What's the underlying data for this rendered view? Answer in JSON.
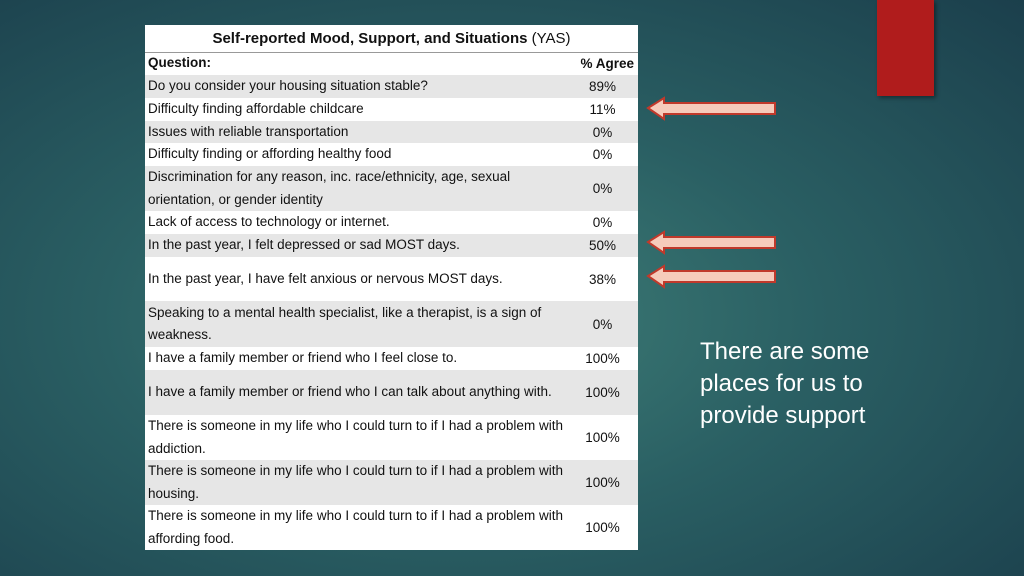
{
  "table": {
    "title": "Self-reported Mood, Support, and Situations",
    "title_suffix": "(YAS)",
    "header": [
      "Question:",
      "% Agree"
    ],
    "rows": [
      [
        "Do you consider your housing situation stable?",
        "89%"
      ],
      [
        "Difficulty finding affordable childcare",
        "11%"
      ],
      [
        "Issues with reliable transportation",
        "0%"
      ],
      [
        "Difficulty finding or affording healthy food",
        "0%"
      ],
      [
        "Discrimination for any reason, inc. race/ethnicity, age, sexual orientation, or gender identity",
        "0%"
      ],
      [
        "Lack of access to technology or internet.",
        "0%"
      ],
      [
        "In the past year, I felt depressed or sad MOST days.",
        "50%"
      ],
      [
        "In the past year, I have felt anxious or nervous MOST days.",
        "38%"
      ],
      [
        "Speaking to a mental health specialist, like a therapist, is a sign of weakness.",
        "0%"
      ],
      [
        "I have a family member or friend who I feel close to.",
        "100%"
      ],
      [
        "I have a family member or friend who I can talk about anything with.",
        "100%"
      ],
      [
        "There is someone in my life who I could turn to if I had a problem with addiction.",
        "100%"
      ],
      [
        "There is someone in my life who I could turn to if I had a problem with housing.",
        "100%"
      ],
      [
        "There is someone in my life who I could turn to if I had a problem with affording food.",
        "100%"
      ]
    ]
  },
  "callout": "There are some places for us to provide support"
}
